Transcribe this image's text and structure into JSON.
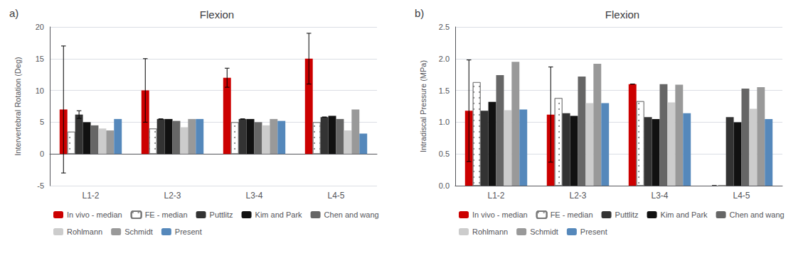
{
  "chart_data": [
    {
      "type": "bar",
      "title": "Flexion",
      "ylabel": "Intervertebral Rotation (Deg)",
      "annotations": [
        "a)"
      ],
      "categories": [
        "L1-2",
        "L2-3",
        "L3-4",
        "L4-5"
      ],
      "series": [
        {
          "name": "In vivo - median",
          "color": "#CC0000",
          "values": [
            7.0,
            10.0,
            12.0,
            15.0
          ],
          "yerr": [
            10.0,
            5.0,
            1.5,
            4.0
          ]
        },
        {
          "name": "FE - median",
          "color": "white",
          "values": [
            3.5,
            4.0,
            5.0,
            5.0
          ]
        },
        {
          "name": "Puttlitz",
          "color": "#333333",
          "values": [
            6.2,
            5.5,
            5.5,
            5.8
          ],
          "yerr": [
            0.6,
            0,
            0,
            0
          ]
        },
        {
          "name": "Kim and Park",
          "color": "#111111",
          "values": [
            5.0,
            5.5,
            5.5,
            6.0
          ]
        },
        {
          "name": "Chen and wang",
          "color": "#666666",
          "values": [
            4.5,
            5.2,
            5.0,
            5.5
          ]
        },
        {
          "name": "Rohlmann",
          "color": "#CCCCCC",
          "values": [
            4.0,
            4.2,
            4.5,
            3.7
          ]
        },
        {
          "name": "Schmidt",
          "color": "#999999",
          "values": [
            3.7,
            5.5,
            5.5,
            7.0
          ]
        },
        {
          "name": "Present",
          "color": "#5588BB",
          "values": [
            5.5,
            5.5,
            5.2,
            3.2
          ]
        }
      ],
      "ylim": [
        -5,
        20
      ],
      "yticks": [
        -5,
        0,
        5,
        10,
        15,
        20
      ],
      "grid": true,
      "legend": "bottom"
    },
    {
      "type": "bar",
      "title": "Flexion",
      "ylabel": "Intradiscal Pressure (MPa)",
      "annotations": [
        "b)"
      ],
      "categories": [
        "L1-2",
        "L2-3",
        "L3-4",
        "L4-5"
      ],
      "series": [
        {
          "name": "In vivo - median",
          "color": "#CC0000",
          "values": [
            1.18,
            1.12,
            1.6,
            0.0
          ],
          "yerr": [
            0.8,
            0.75,
            0.0,
            0.0
          ]
        },
        {
          "name": "FE - median",
          "color": "white",
          "values": [
            1.63,
            1.38,
            1.33,
            0.0
          ]
        },
        {
          "name": "Puttlitz",
          "color": "#333333",
          "values": [
            1.18,
            1.14,
            1.08,
            1.08
          ]
        },
        {
          "name": "Kim and Park",
          "color": "#111111",
          "values": [
            1.32,
            1.1,
            1.05,
            1.0
          ]
        },
        {
          "name": "Chen and wang",
          "color": "#666666",
          "values": [
            1.74,
            1.72,
            1.6,
            1.53
          ]
        },
        {
          "name": "Rohlmann",
          "color": "#CCCCCC",
          "values": [
            1.19,
            1.3,
            1.31,
            1.21
          ]
        },
        {
          "name": "Schmidt",
          "color": "#999999",
          "values": [
            1.95,
            1.92,
            1.59,
            1.55
          ]
        },
        {
          "name": "Present",
          "color": "#5588BB",
          "values": [
            1.2,
            1.3,
            1.14,
            1.05
          ]
        }
      ],
      "ylim": [
        0,
        2.5
      ],
      "yticks": [
        {
          "value": 0,
          "label": "0.0"
        },
        0.5,
        {
          "value": 1,
          "label": "1.0"
        },
        1.5,
        {
          "value": 2,
          "label": "2.0"
        },
        2.5
      ],
      "grid": true,
      "legend": "bottom"
    }
  ]
}
